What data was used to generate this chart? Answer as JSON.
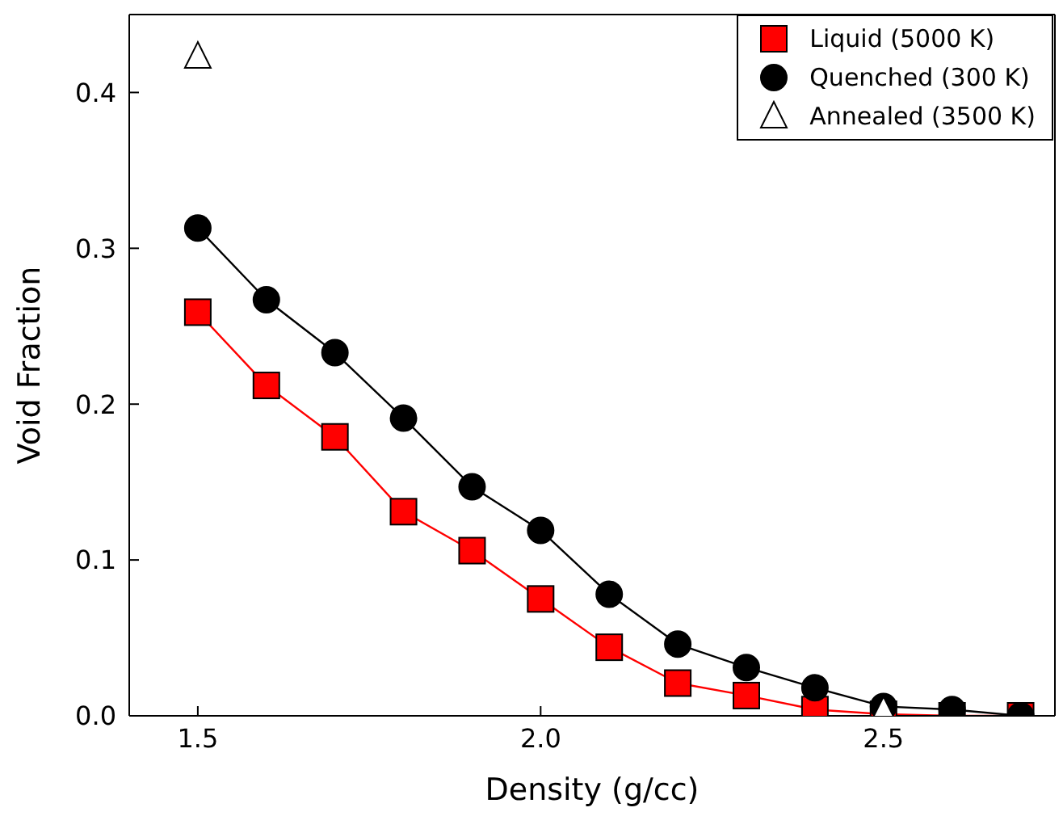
{
  "chart_data": {
    "type": "line",
    "xlabel": "Density (g/cc)",
    "ylabel": "Void Fraction",
    "x": [
      1.5,
      1.6,
      1.7,
      1.8,
      1.9,
      2.0,
      2.1,
      2.2,
      2.3,
      2.4,
      2.5,
      2.6,
      2.7
    ],
    "series": [
      {
        "name": "Liquid (5000 K)",
        "color": "#ff0000",
        "marker": "square",
        "values": [
          0.259,
          0.212,
          0.179,
          0.131,
          0.106,
          0.075,
          0.044,
          0.021,
          0.013,
          0.004,
          0.001,
          0.0,
          0.0
        ]
      },
      {
        "name": "Quenched (300 K)",
        "color": "#000000",
        "marker": "circle",
        "values": [
          0.313,
          0.267,
          0.233,
          0.191,
          0.147,
          0.119,
          0.078,
          0.046,
          0.031,
          0.018,
          0.006,
          0.004,
          0.0
        ]
      },
      {
        "name": "Annealed (3500 K)",
        "type": "scatter",
        "color": "#ffffff",
        "marker": "triangle",
        "x": [
          1.5,
          2.5
        ],
        "values": [
          0.423,
          0.003
        ]
      }
    ],
    "xlim": [
      1.4,
      2.75
    ],
    "xticks": [
      {
        "value": 1.5,
        "label": "1.5"
      },
      {
        "value": 2.0,
        "label": "2.0"
      },
      {
        "value": 2.5,
        "label": "2.5"
      }
    ],
    "ylim": [
      0,
      0.45
    ],
    "yticks": [
      {
        "value": 0,
        "label": "0.0"
      },
      {
        "value": 0.1,
        "label": "0.1"
      },
      {
        "value": 0.2,
        "label": "0.2"
      },
      {
        "value": 0.3,
        "label": "0.3"
      },
      {
        "value": 0.4,
        "label": "0.4"
      }
    ],
    "legend": "top right",
    "grid": false
  }
}
